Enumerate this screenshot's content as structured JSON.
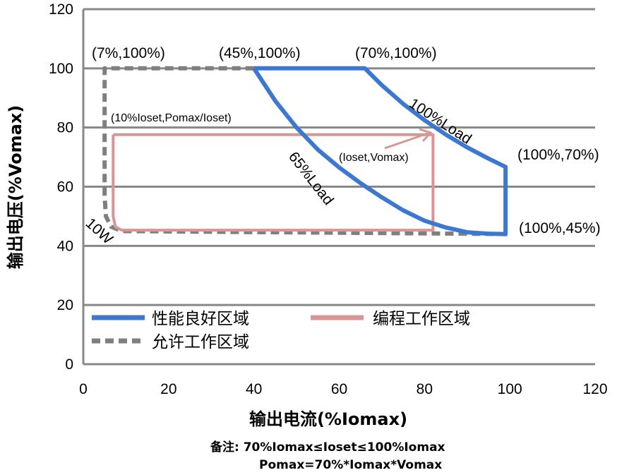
{
  "chart_data": {
    "type": "line",
    "xlabel": "输出电流(%Iomax)",
    "ylabel": "输出电压(%Vomax)",
    "xlim": [
      0,
      120
    ],
    "ylim": [
      0,
      120
    ],
    "xticks": [
      "0",
      "20",
      "40",
      "60",
      "80",
      "100",
      "120"
    ],
    "yticks": [
      "0",
      "20",
      "40",
      "60",
      "80",
      "100",
      "120"
    ],
    "grid": "horizontal",
    "series": [
      {
        "name": "性能良好区域",
        "color": "#3c78d0",
        "style": "solid",
        "points": [
          [
            40,
            100
          ],
          [
            66,
            100
          ],
          [
            70,
            94.3
          ],
          [
            75,
            88
          ],
          [
            80,
            82.5
          ],
          [
            85,
            77.6
          ],
          [
            90,
            73.3
          ],
          [
            95,
            69.5
          ],
          [
            99,
            66.7
          ],
          [
            99,
            44
          ],
          [
            95,
            44.1
          ],
          [
            90,
            44.6
          ],
          [
            85,
            46.2
          ],
          [
            80,
            48.5
          ],
          [
            75,
            52
          ],
          [
            70,
            56.4
          ],
          [
            65,
            61.2
          ],
          [
            60,
            66.5
          ],
          [
            55,
            72.5
          ],
          [
            50,
            80
          ],
          [
            45,
            89
          ],
          [
            40,
            100
          ]
        ]
      },
      {
        "name": "允许工作区域",
        "color": "#7f7f7f",
        "style": "dashed",
        "points": [
          [
            40,
            100
          ],
          [
            5,
            100
          ],
          [
            5,
            57
          ],
          [
            5.3,
            50
          ],
          [
            6.5,
            46.5
          ],
          [
            9,
            45
          ],
          [
            100,
            44
          ]
        ]
      },
      {
        "name": "编程工作区域",
        "color": "#d99594",
        "style": "solid",
        "points": [
          [
            7,
            77.6
          ],
          [
            82,
            77.6
          ],
          [
            82,
            45.3
          ],
          [
            9,
            45.3
          ],
          [
            7.5,
            46.5
          ],
          [
            7,
            50
          ],
          [
            7,
            77.6
          ]
        ]
      }
    ],
    "annotations": [
      {
        "text": "(7%,100%)"
      },
      {
        "text": "(45%,100%)"
      },
      {
        "text": "(70%,100%)"
      },
      {
        "text": "(100%,70%)"
      },
      {
        "text": "(100%,45%)"
      },
      {
        "text": "(10%Ioset,Pomax/Ioset)"
      },
      {
        "text": "(Ioset,Vomax)"
      },
      {
        "text": "100%Load"
      },
      {
        "text": "65%Load"
      },
      {
        "text": "10W"
      }
    ],
    "legend_position": "bottom-inside",
    "notes": [
      "备注:  70%Iomax≤Ioset≤100%Iomax",
      "Pomax=70%*Iomax*Vomax"
    ]
  }
}
